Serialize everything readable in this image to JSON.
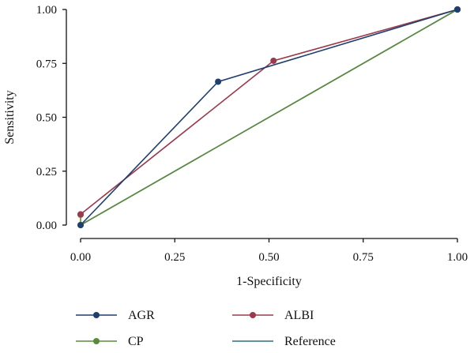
{
  "chart_data": {
    "type": "line",
    "title": "",
    "xlabel": "1-Specificity",
    "ylabel": "Sensitivity",
    "xlim": [
      0,
      1
    ],
    "ylim": [
      0,
      1
    ],
    "x_ticks": [
      0,
      0.25,
      0.5,
      0.75,
      1
    ],
    "x_tick_labels": [
      "0.00",
      "0.25",
      "0.50",
      "0.75",
      "1.00"
    ],
    "y_ticks": [
      0,
      0.25,
      0.5,
      0.75,
      1
    ],
    "y_tick_labels": [
      "0.00",
      "0.25",
      "0.50",
      "0.75",
      "1.00"
    ],
    "grid": false,
    "legend_position": "bottom",
    "series": [
      {
        "name": "AGR",
        "color": "#1f3f6e",
        "markers": true,
        "points": [
          [
            0,
            0
          ],
          [
            0.365,
            0.665
          ],
          [
            1,
            1
          ]
        ]
      },
      {
        "name": "ALBI",
        "color": "#9b3a4d",
        "markers": true,
        "points": [
          [
            0,
            0.05
          ],
          [
            0.512,
            0.762
          ],
          [
            1,
            1
          ]
        ]
      },
      {
        "name": "CP",
        "color": "#5b8a3c",
        "markers": true,
        "points": [
          [
            0,
            0.048
          ],
          [
            0,
            0
          ],
          [
            1,
            1
          ]
        ]
      },
      {
        "name": "Reference",
        "color": "#2e6f78",
        "markers": false,
        "points": [
          [
            0,
            0
          ],
          [
            1,
            1
          ]
        ]
      }
    ]
  }
}
